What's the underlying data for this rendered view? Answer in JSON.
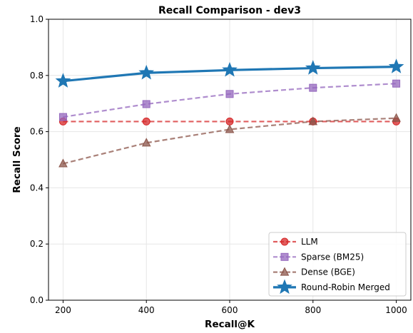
{
  "chart_data": {
    "type": "line",
    "title": "Recall Comparison - dev3",
    "xlabel": "Recall@K",
    "ylabel": "Recall Score",
    "x": [
      200,
      400,
      600,
      800,
      1000
    ],
    "xticks": [
      "200",
      "400",
      "600",
      "800",
      "1000"
    ],
    "yticks": [
      "0.0",
      "0.2",
      "0.4",
      "0.6",
      "0.8",
      "1.0"
    ],
    "xlim": [
      165,
      1035
    ],
    "ylim": [
      0.0,
      1.0
    ],
    "grid": true,
    "legend_position": "lower-right",
    "series": [
      {
        "name": "LLM",
        "values": [
          0.636,
          0.636,
          0.636,
          0.636,
          0.636
        ],
        "color": "#d62728",
        "marker": "circle",
        "style": "dashed"
      },
      {
        "name": "Sparse (BM25)",
        "values": [
          0.652,
          0.698,
          0.734,
          0.756,
          0.771
        ],
        "color": "#9467bd",
        "marker": "square",
        "style": "dashed"
      },
      {
        "name": "Dense (BGE)",
        "values": [
          0.486,
          0.56,
          0.608,
          0.636,
          0.648
        ],
        "color": "#8c564b",
        "marker": "triangle",
        "style": "dashed"
      },
      {
        "name": "Round-Robin Merged",
        "values": [
          0.78,
          0.809,
          0.819,
          0.826,
          0.831
        ],
        "color": "#1f77b4",
        "marker": "star",
        "style": "solid"
      }
    ]
  }
}
